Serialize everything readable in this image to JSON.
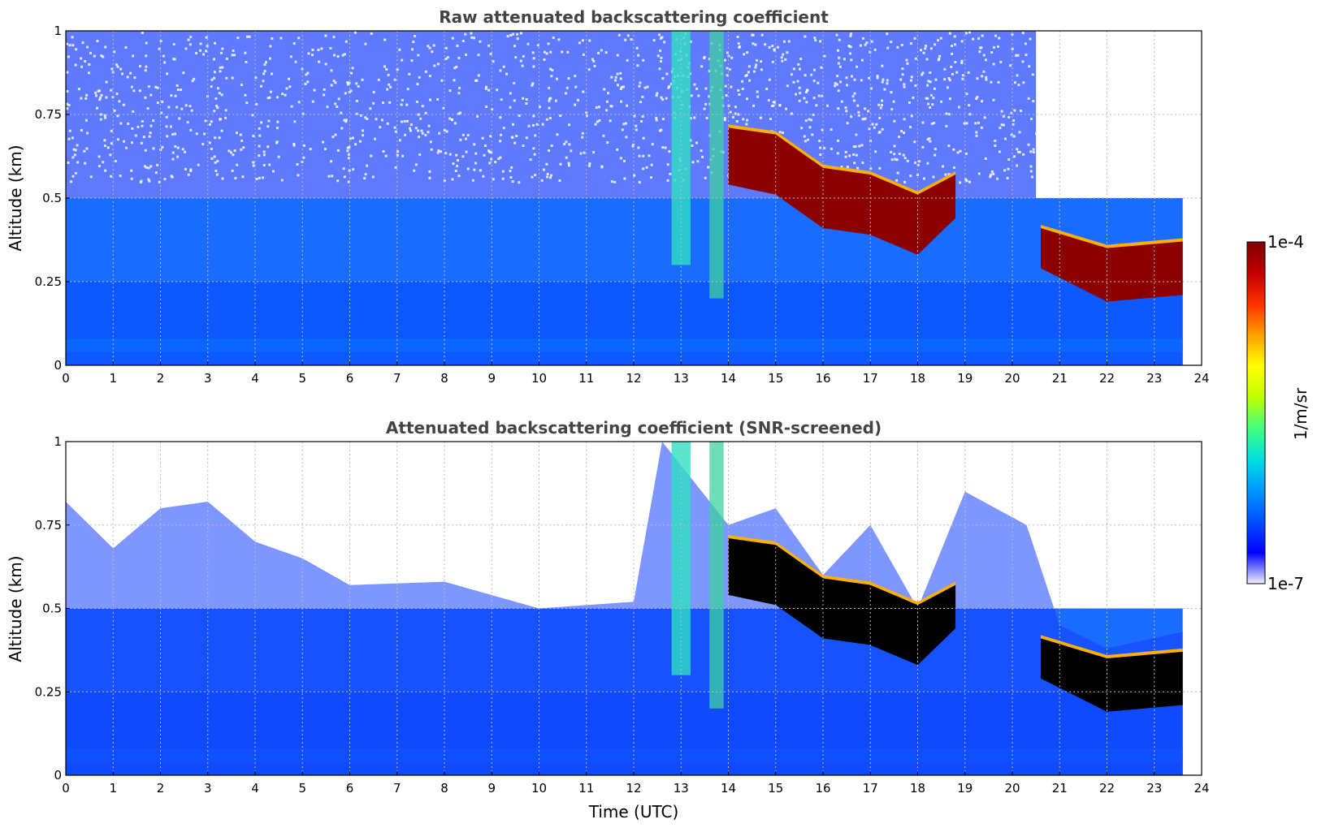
{
  "colors": {
    "noise_speckle": "#1a1aff",
    "boundary_layer": "#0a4cff",
    "aerosol": "#1e90ff",
    "cloud": "#8b0000",
    "screened_cloud": "#000000",
    "grid": "#bbbbbb"
  },
  "chart_data": [
    {
      "type": "heatmap",
      "title": "Raw attenuated backscattering coefficient",
      "xlabel": "",
      "ylabel": "Altitude (km)",
      "xlim": [
        0,
        24
      ],
      "ylim": [
        0,
        1
      ],
      "x_ticks": [
        "0",
        "1",
        "2",
        "3",
        "4",
        "5",
        "6",
        "7",
        "8",
        "9",
        "10",
        "11",
        "12",
        "13",
        "14",
        "15",
        "16",
        "17",
        "18",
        "19",
        "20",
        "21",
        "22",
        "23",
        "24"
      ],
      "y_ticks": [
        "0",
        "0.25",
        "0.5",
        "0.75",
        "1"
      ],
      "grid": true,
      "data_end_time_utc": 23.6,
      "cloud_base_km": [
        {
          "t": 14.0,
          "base": 0.55,
          "top": 0.72
        },
        {
          "t": 15.0,
          "base": 0.52,
          "top": 0.7
        },
        {
          "t": 16.0,
          "base": 0.42,
          "top": 0.6
        },
        {
          "t": 17.0,
          "base": 0.4,
          "top": 0.58
        },
        {
          "t": 18.0,
          "base": 0.34,
          "top": 0.52
        },
        {
          "t": 18.8,
          "base": 0.45,
          "top": 0.58
        },
        {
          "t": 20.6,
          "base": 0.3,
          "top": 0.42
        },
        {
          "t": 22.0,
          "base": 0.2,
          "top": 0.36
        },
        {
          "t": 23.6,
          "base": 0.22,
          "top": 0.38
        }
      ]
    },
    {
      "type": "heatmap",
      "title": "Attenuated backscattering coefficient (SNR-screened)",
      "xlabel": "Time (UTC)",
      "ylabel": "Altitude (km)",
      "xlim": [
        0,
        24
      ],
      "ylim": [
        0,
        1
      ],
      "x_ticks": [
        "0",
        "1",
        "2",
        "3",
        "4",
        "5",
        "6",
        "7",
        "8",
        "9",
        "10",
        "11",
        "12",
        "13",
        "14",
        "15",
        "16",
        "17",
        "18",
        "19",
        "20",
        "21",
        "22",
        "23",
        "24"
      ],
      "y_ticks": [
        "0",
        "0.25",
        "0.5",
        "0.75",
        "1"
      ],
      "grid": true,
      "data_end_time_utc": 23.6,
      "signal_top_km": [
        {
          "t": 0.0,
          "top": 0.82
        },
        {
          "t": 1.0,
          "top": 0.68
        },
        {
          "t": 2.0,
          "top": 0.8
        },
        {
          "t": 3.0,
          "top": 0.82
        },
        {
          "t": 4.0,
          "top": 0.7
        },
        {
          "t": 5.0,
          "top": 0.65
        },
        {
          "t": 6.0,
          "top": 0.57
        },
        {
          "t": 8.0,
          "top": 0.58
        },
        {
          "t": 10.0,
          "top": 0.5
        },
        {
          "t": 12.0,
          "top": 0.52
        },
        {
          "t": 12.6,
          "top": 1.0
        },
        {
          "t": 14.0,
          "top": 0.75
        },
        {
          "t": 15.0,
          "top": 0.8
        },
        {
          "t": 16.0,
          "top": 0.6
        },
        {
          "t": 17.0,
          "top": 0.75
        },
        {
          "t": 18.0,
          "top": 0.5
        },
        {
          "t": 19.0,
          "top": 0.85
        },
        {
          "t": 20.3,
          "top": 0.75
        },
        {
          "t": 21.0,
          "top": 0.45
        },
        {
          "t": 22.0,
          "top": 0.38
        },
        {
          "t": 23.6,
          "top": 0.43
        }
      ]
    }
  ],
  "colorbar": {
    "max_label": "1e-4",
    "min_label": "1e-7",
    "unit_label": "1/m/sr",
    "stops": [
      "#f0f0ff",
      "#0000ff",
      "#0050ff",
      "#0096ff",
      "#00e0e0",
      "#40ff80",
      "#c0ff00",
      "#ffff00",
      "#ffa000",
      "#ff3000",
      "#c00000",
      "#800000"
    ]
  }
}
